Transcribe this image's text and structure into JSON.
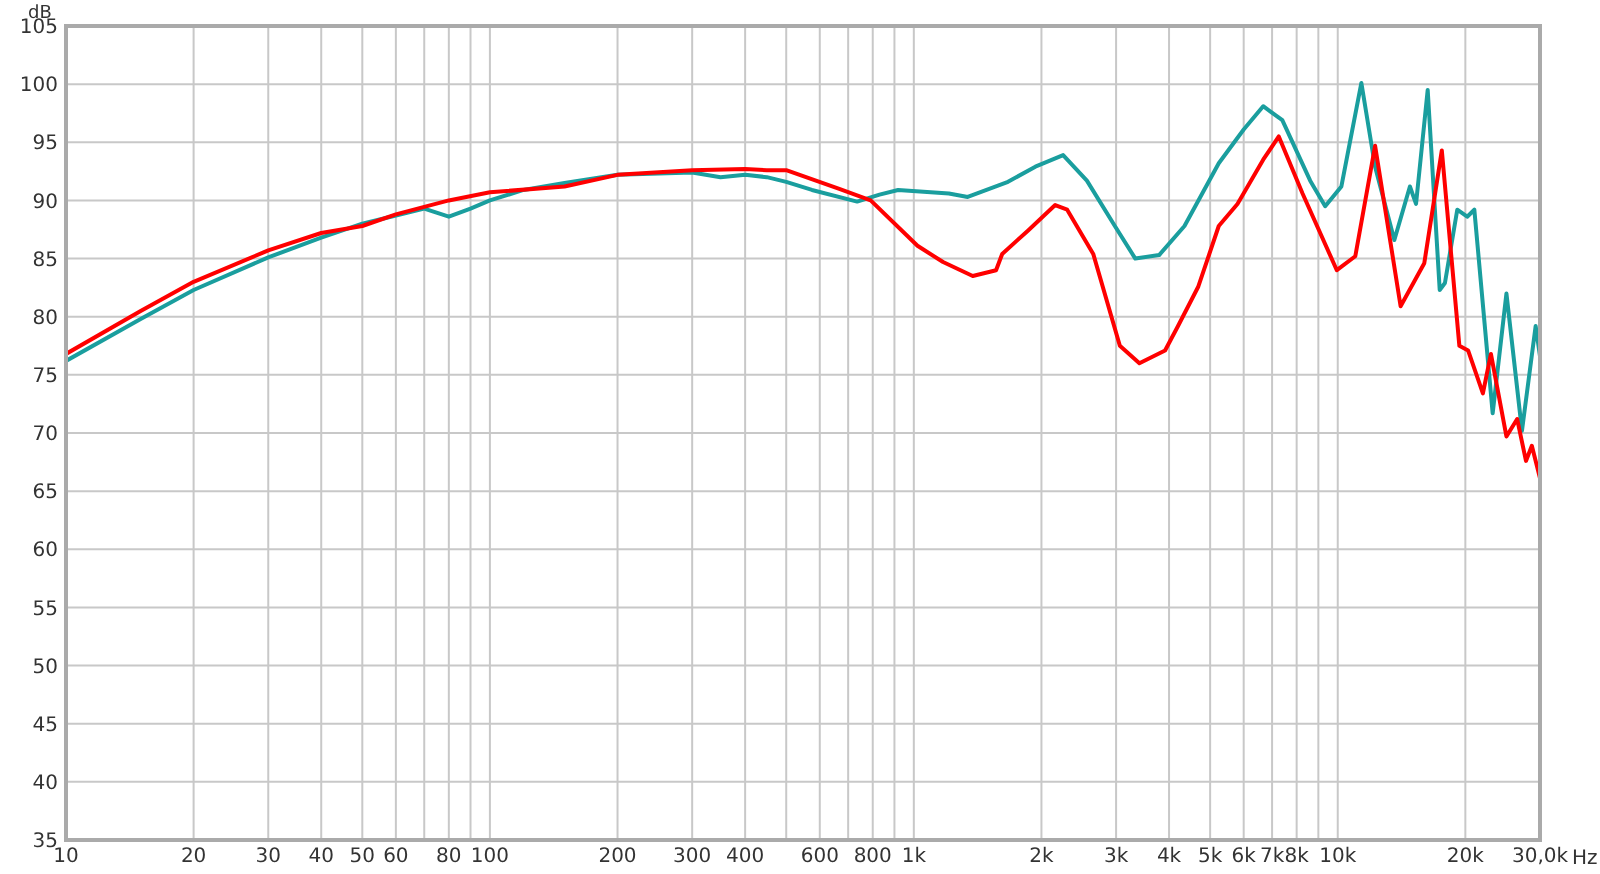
{
  "chart_data": {
    "type": "line",
    "xlabel": "Hz",
    "ylabel": "dB",
    "log": "x",
    "grid": true,
    "marker": "none",
    "line_style": "solid",
    "xlim": [
      10,
      30000
    ],
    "ylim": [
      35,
      105
    ],
    "xticks": [
      10,
      20,
      30,
      40,
      50,
      60,
      {
        "value": 70,
        "label": null
      },
      80,
      {
        "value": 90,
        "label": null
      },
      100,
      200,
      300,
      400,
      {
        "value": 500,
        "label": null
      },
      600,
      {
        "value": 700,
        "label": null
      },
      800,
      {
        "value": 900,
        "label": null
      },
      {
        "value": 1000,
        "label": "1k"
      },
      {
        "value": 2000,
        "label": "2k"
      },
      {
        "value": 3000,
        "label": "3k"
      },
      {
        "value": 4000,
        "label": "4k"
      },
      {
        "value": 5000,
        "label": "5k"
      },
      {
        "value": 6000,
        "label": "6k"
      },
      {
        "value": 7000,
        "label": "7k"
      },
      {
        "value": 8000,
        "label": "8k"
      },
      {
        "value": 9000,
        "label": null
      },
      {
        "value": 10000,
        "label": "10k"
      },
      {
        "value": 20000,
        "label": "20k"
      },
      {
        "value": 30000,
        "label": "30,0k"
      }
    ],
    "yticks": [
      35,
      40,
      45,
      50,
      55,
      60,
      65,
      70,
      75,
      80,
      85,
      90,
      95,
      100,
      105
    ],
    "series": [
      {
        "color": "#1a9e9e",
        "x": [
          10,
          15,
          20,
          30,
          40,
          50,
          60,
          70,
          80,
          90,
          100,
          120,
          150,
          200,
          300,
          350,
          400,
          450,
          500,
          575,
          735,
          830,
          918,
          1210,
          1340,
          1668,
          1935,
          2250,
          2560,
          2980,
          3330,
          3790,
          4350,
          5240,
          6000,
          6670,
          7400,
          8610,
          9340,
          10200,
          11370,
          12250,
          13600,
          14800,
          15300,
          16300,
          17400,
          17900,
          19140,
          20200,
          21000,
          23200,
          25000,
          27200,
          29300,
          30000
        ],
        "values": [
          76.2,
          79.8,
          82.3,
          85.1,
          86.8,
          88.0,
          88.7,
          89.3,
          88.6,
          89.3,
          90.0,
          90.9,
          91.5,
          92.2,
          92.4,
          92.0,
          92.2,
          92.0,
          91.6,
          90.9,
          89.9,
          90.5,
          90.9,
          90.6,
          90.3,
          91.6,
          92.9,
          93.9,
          91.7,
          87.8,
          85.0,
          85.3,
          87.8,
          93.2,
          96.1,
          98.1,
          96.9,
          91.7,
          89.5,
          91.2,
          100.1,
          92.9,
          86.6,
          91.2,
          89.7,
          99.5,
          82.3,
          82.9,
          89.2,
          88.6,
          89.2,
          71.7,
          82.0,
          70.2,
          79.2,
          76.6
        ]
      },
      {
        "color": "#ff0000",
        "x": [
          10,
          15,
          20,
          30,
          40,
          50,
          60,
          80,
          100,
          150,
          200,
          300,
          400,
          450,
          500,
          667,
          791,
          1020,
          1172,
          1377,
          1563,
          1616,
          1858,
          2155,
          2300,
          2650,
          3062,
          3405,
          3914,
          4200,
          4690,
          5240,
          5800,
          6670,
          7260,
          8260,
          9950,
          11000,
          12250,
          14070,
          16000,
          17600,
          19360,
          20300,
          22000,
          22980,
          25000,
          26500,
          27800,
          28700,
          30000
        ],
        "values": [
          76.8,
          80.5,
          83.0,
          85.7,
          87.2,
          87.8,
          88.8,
          90.0,
          90.7,
          91.2,
          92.2,
          92.6,
          92.7,
          92.6,
          92.6,
          91.0,
          90.0,
          86.1,
          84.7,
          83.5,
          84.0,
          85.4,
          87.4,
          89.6,
          89.2,
          85.4,
          77.5,
          76.0,
          77.1,
          79.2,
          82.6,
          87.8,
          89.7,
          93.5,
          95.5,
          90.6,
          84.0,
          85.2,
          94.7,
          80.9,
          84.6,
          94.3,
          77.5,
          77.1,
          73.4,
          76.8,
          69.7,
          71.2,
          67.6,
          68.9,
          66.1
        ]
      }
    ]
  }
}
